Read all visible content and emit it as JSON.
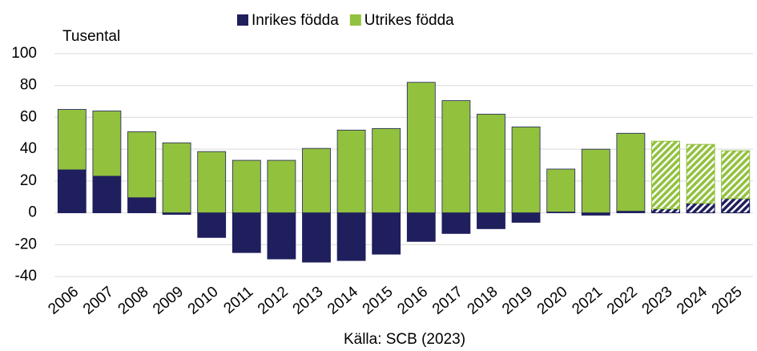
{
  "chart_data": {
    "type": "bar",
    "stacked": true,
    "y_label": "Tusental",
    "source": "Källa: SCB (2023)",
    "categories": [
      "2006",
      "2007",
      "2008",
      "2009",
      "2010",
      "2011",
      "2012",
      "2013",
      "2014",
      "2015",
      "2016",
      "2017",
      "2018",
      "2019",
      "2020",
      "2021",
      "2022",
      "2023",
      "2024",
      "2025"
    ],
    "series": [
      {
        "name": "Inrikes födda",
        "color": "#1f1f5e",
        "values": [
          27,
          23,
          9.5,
          -1,
          -15.5,
          -25,
          -29,
          -31,
          -30,
          -26,
          -18,
          -13,
          -10,
          -6,
          0.5,
          -1.5,
          1,
          2.5,
          6,
          9
        ]
      },
      {
        "name": "Utrikes födda",
        "color": "#92c13e",
        "values": [
          38,
          41,
          41.5,
          44,
          38.5,
          33,
          33,
          40.5,
          52,
          53,
          82,
          70.5,
          62,
          54,
          27,
          40,
          49,
          42.5,
          37,
          30
        ]
      }
    ],
    "hatched": [
      false,
      false,
      false,
      false,
      false,
      false,
      false,
      false,
      false,
      false,
      false,
      false,
      false,
      false,
      false,
      false,
      false,
      true,
      true,
      true
    ],
    "ylim": [
      -40,
      100
    ],
    "yticks": [
      -40,
      -20,
      0,
      20,
      40,
      60,
      80,
      100
    ],
    "grid": true,
    "legend": "top"
  }
}
